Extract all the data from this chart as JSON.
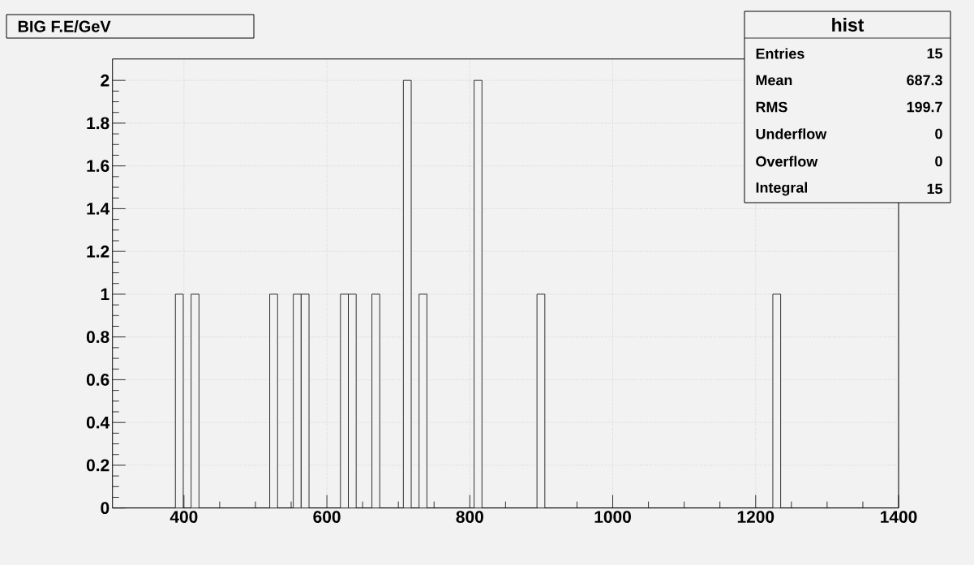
{
  "chart_data": {
    "type": "histogram",
    "title": "BIG F.E/GeV",
    "bins": [
      300,
      311,
      322,
      333,
      344,
      355,
      366,
      377,
      388,
      399,
      410,
      421,
      432,
      443,
      454,
      465,
      476,
      487,
      498,
      509,
      520,
      531,
      542,
      553,
      564,
      575,
      586,
      597,
      608,
      619,
      630,
      641,
      652,
      663,
      674,
      685,
      696,
      707,
      718,
      729,
      740,
      751,
      762,
      773,
      784,
      795,
      806,
      817,
      828,
      839,
      850,
      861,
      872,
      883,
      894,
      905,
      916,
      927,
      938,
      949,
      960,
      971,
      982,
      993,
      1004,
      1015,
      1026,
      1037,
      1048,
      1059,
      1070,
      1081,
      1092,
      1103,
      1114,
      1125,
      1136,
      1147,
      1158,
      1169,
      1180,
      1191,
      1202,
      1213,
      1224,
      1235,
      1246,
      1257,
      1268,
      1279,
      1290,
      1301,
      1312,
      1323,
      1334,
      1345,
      1356,
      1367,
      1378,
      1389,
      1400
    ],
    "values": [
      0,
      0,
      0,
      0,
      0,
      0,
      0,
      0,
      1,
      0,
      1,
      0,
      0,
      0,
      0,
      0,
      0,
      0,
      0,
      0,
      1,
      0,
      0,
      1,
      1,
      0,
      0,
      0,
      0,
      1,
      1,
      0,
      0,
      1,
      0,
      0,
      0,
      2,
      0,
      1,
      0,
      0,
      0,
      0,
      0,
      0,
      2,
      0,
      0,
      0,
      0,
      0,
      0,
      0,
      1,
      0,
      0,
      0,
      0,
      0,
      0,
      0,
      0,
      0,
      0,
      0,
      0,
      0,
      0,
      0,
      0,
      0,
      0,
      0,
      0,
      0,
      0,
      0,
      0,
      0,
      0,
      0,
      0,
      0,
      1,
      0,
      0,
      0,
      0,
      0,
      0,
      0,
      0,
      0,
      0,
      0,
      0,
      0,
      0,
      0
    ],
    "color": "#f2f2f2",
    "xlim": [
      300,
      1400
    ],
    "xticks": [
      400,
      600,
      800,
      1000,
      1200,
      1400
    ],
    "ylim": [
      0,
      2.1
    ],
    "yticks": [
      0,
      0.2,
      0.4,
      0.6,
      0.8,
      1,
      1.2,
      1.4,
      1.6,
      1.8,
      2
    ],
    "grid": true,
    "annotations": [
      "hist",
      "Entries",
      "15",
      "Mean",
      "687.3",
      "RMS",
      "199.7",
      "Underflow",
      "0",
      "Overflow",
      "0",
      "Integral",
      "15"
    ]
  }
}
